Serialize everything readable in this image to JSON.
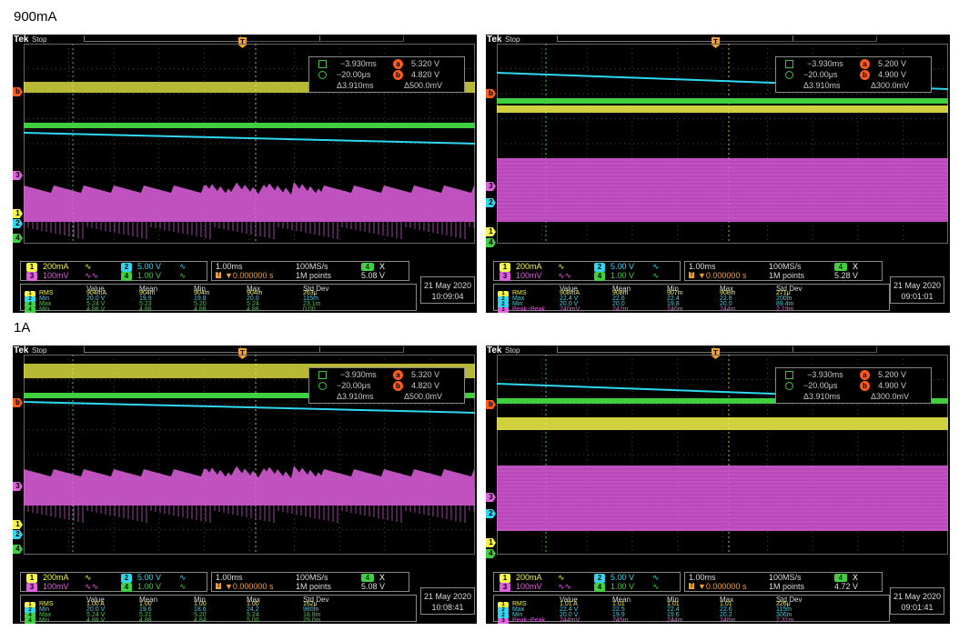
{
  "labels": {
    "row1": "900mA",
    "row2": "1A"
  },
  "colors": {
    "ch1": "#f5f54a",
    "ch2": "#2fd8f0",
    "ch3": "#e060e0",
    "ch4": "#3fcf3f",
    "cursor": "#ff5a1e"
  },
  "scopes": [
    {
      "header": {
        "brand": "Tek",
        "status": "Stop"
      },
      "cursor": {
        "t1": "−3.930ms",
        "v1": "5.320 V",
        "t2": "−20.00μs",
        "v2": "4.820 V",
        "dt": "Δ3.910ms",
        "dv": "Δ500.0mV"
      },
      "channels": {
        "ch1_scale": "200mA",
        "ch2_scale": "5.00 V",
        "ch3_scale": "100mV",
        "ch4_scale": "1.00 V"
      },
      "timebase": {
        "horiz": "1.00ms",
        "rate": "100MS/s",
        "trig_pos": "▼0.000000 s",
        "points": "1M points",
        "trig_ch": "4",
        "trig_mode": "X",
        "trig_level": "5.08 V"
      },
      "measurements": {
        "headers": [
          "Value",
          "Mean",
          "Min",
          "Max",
          "Std Dev"
        ],
        "rows": [
          {
            "ch": "1",
            "name": "RMS",
            "cells": [
              "904mA",
              "904m",
              "904m",
              "904m",
              "263μ"
            ]
          },
          {
            "ch": "2",
            "name": "Min",
            "cells": [
              "20.0 V",
              "19.9",
              "19.8",
              "20.0",
              "115m"
            ]
          },
          {
            "ch": "4",
            "name": "Max",
            "cells": [
              "5.24 V",
              "5.23",
              "5.20",
              "5.24",
              "23.1m"
            ]
          },
          {
            "ch": "4",
            "name": "Min",
            "cells": [
              "4.88 V",
              "4.88",
              "4.88",
              "4.88",
              "0.00"
            ]
          }
        ]
      },
      "date": {
        "day": "21 May 2020",
        "time": "10:09:04"
      }
    },
    {
      "header": {
        "brand": "Tek",
        "status": "Stop"
      },
      "cursor": {
        "t1": "−3.930ms",
        "v1": "5.200 V",
        "t2": "−20.00μs",
        "v2": "4.900 V",
        "dt": "Δ3.910ms",
        "dv": "Δ300.0mV"
      },
      "channels": {
        "ch1_scale": "200mA",
        "ch2_scale": "5.00 V",
        "ch3_scale": "100mV",
        "ch4_scale": "1.00 V"
      },
      "timebase": {
        "horiz": "1.00ms",
        "rate": "100MS/s",
        "trig_pos": "▼0.000000 s",
        "points": "1M points",
        "trig_ch": "4",
        "trig_mode": "X",
        "trig_level": "5.28 V"
      },
      "measurements": {
        "headers": [
          "Value",
          "Mean",
          "Min",
          "Max",
          "Std Dev"
        ],
        "rows": [
          {
            "ch": "1",
            "name": "RMS",
            "cells": [
              "908mA",
              "908m",
              "907m",
              "908m",
              "271μ"
            ]
          },
          {
            "ch": "2",
            "name": "Max",
            "cells": [
              "22.4 V",
              "22.6",
              "22.4",
              "22.8",
              "200m"
            ]
          },
          {
            "ch": "2",
            "name": "Min",
            "cells": [
              "20.0 V",
              "20.0",
              "19.8",
              "20.0",
              "89.4m"
            ]
          },
          {
            "ch": "3",
            "name": "Peak−Peak",
            "cells": [
              "240mV",
              "242m",
              "240m",
              "244m",
              "2.19m"
            ]
          }
        ]
      },
      "date": {
        "day": "21 May 2020",
        "time": "09:01:01"
      }
    },
    {
      "header": {
        "brand": "Tek",
        "status": "Stop"
      },
      "cursor": {
        "t1": "−3.930ms",
        "v1": "5.320 V",
        "t2": "−20.00μs",
        "v2": "4.820 V",
        "dt": "Δ3.910ms",
        "dv": "Δ500.0mV"
      },
      "channels": {
        "ch1_scale": "200mA",
        "ch2_scale": "5.00 V",
        "ch3_scale": "100mV",
        "ch4_scale": "1.00 V"
      },
      "timebase": {
        "horiz": "1.00ms",
        "rate": "100MS/s",
        "trig_pos": "▼0.000000 s",
        "points": "1M points",
        "trig_ch": "4",
        "trig_mode": "X",
        "trig_level": "5.08 V"
      },
      "measurements": {
        "headers": [
          "Value",
          "Mean",
          "Min",
          "Max",
          "Std Dev"
        ],
        "rows": [
          {
            "ch": "1",
            "name": "RMS",
            "cells": [
              "1.00 A",
              "1.00",
              "1.00",
              "1.00",
              "162μ"
            ]
          },
          {
            "ch": "2",
            "name": "Min",
            "cells": [
              "20.0 V",
              "19.6",
              "18.6",
              "24.2",
              "980m"
            ]
          },
          {
            "ch": "4",
            "name": "Max",
            "cells": [
              "5.24 V",
              "5.21",
              "5.20",
              "5.24",
              "18.8m"
            ]
          },
          {
            "ch": "4",
            "name": "Min",
            "cells": [
              "4.88 V",
              "4.88",
              "4.84",
              "5.00",
              "29.0m"
            ]
          }
        ]
      },
      "date": {
        "day": "21 May 2020",
        "time": "10:08:41"
      }
    },
    {
      "header": {
        "brand": "Tek",
        "status": "Stop"
      },
      "cursor": {
        "t1": "−3.930ms",
        "v1": "5.200 V",
        "t2": "−20.00μs",
        "v2": "4.900 V",
        "dt": "Δ3.910ms",
        "dv": "Δ300.0mV"
      },
      "channels": {
        "ch1_scale": "200mA",
        "ch2_scale": "5.00 V",
        "ch3_scale": "100mV",
        "ch4_scale": "1.00 V"
      },
      "timebase": {
        "horiz": "1.00ms",
        "rate": "100MS/s",
        "trig_pos": "▼0.000000 s",
        "points": "1M points",
        "trig_ch": "4",
        "trig_mode": "X",
        "trig_level": "4.72 V"
      },
      "measurements": {
        "headers": [
          "Value",
          "Mean",
          "Min",
          "Max",
          "Std Dev"
        ],
        "rows": [
          {
            "ch": "1",
            "name": "RMS",
            "cells": [
              "1.01 A",
              "1.01",
              "1.01",
              "1.01",
              "226μ"
            ]
          },
          {
            "ch": "2",
            "name": "Max",
            "cells": [
              "22.4 V",
              "22.5",
              "22.4",
              "22.6",
              "115m"
            ]
          },
          {
            "ch": "2",
            "name": "Min",
            "cells": [
              "20.0 V",
              "19.9",
              "19.6",
              "20.2",
              "306m"
            ]
          },
          {
            "ch": "3",
            "name": "Peak−Peak",
            "cells": [
              "244mV",
              "245m",
              "244m",
              "248m",
              "2.31m"
            ]
          }
        ]
      },
      "date": {
        "day": "21 May 2020",
        "time": "09:01:41"
      }
    }
  ]
}
